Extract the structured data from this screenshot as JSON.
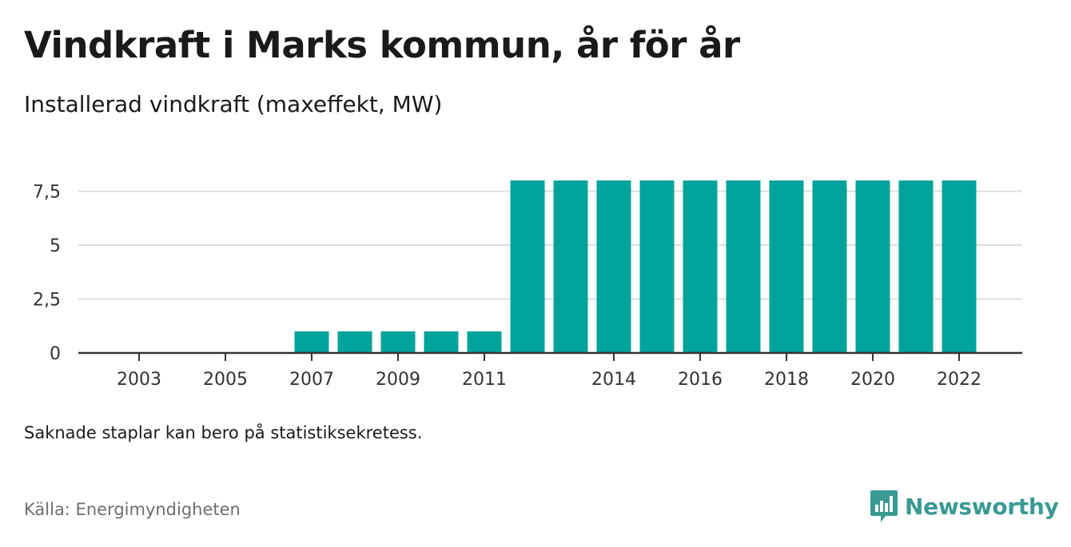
{
  "header": {
    "title": "Vindkraft i Marks kommun, år för år",
    "subtitle": "Installerad vindkraft (maxeffekt, MW)"
  },
  "footer": {
    "note": "Saknade staplar kan bero på statistiksekretess.",
    "source": "Källa: Energimyndigheten",
    "brand": "Newsworthy"
  },
  "colors": {
    "bar": "#00a39a",
    "grid": "#dddddd",
    "axis": "#333333",
    "brand": "#3a9a93"
  },
  "chart_data": {
    "type": "bar",
    "categories": [
      "2002",
      "2003",
      "2004",
      "2005",
      "2006",
      "2007",
      "2008",
      "2009",
      "2010",
      "2011",
      "2012",
      "2013",
      "2014",
      "2015",
      "2016",
      "2017",
      "2018",
      "2019",
      "2020",
      "2021",
      "2022"
    ],
    "values": [
      null,
      null,
      null,
      null,
      null,
      1,
      1,
      1,
      1,
      1,
      8,
      8,
      8,
      8,
      8,
      8,
      8,
      8,
      8,
      8,
      8
    ],
    "x_tick_labels": [
      "2003",
      "2005",
      "2007",
      "2009",
      "2011",
      "2014",
      "2016",
      "2018",
      "2020",
      "2022"
    ],
    "y_ticks": [
      0,
      2.5,
      5,
      7.5
    ],
    "y_tick_labels": [
      "0",
      "2,5",
      "5",
      "7,5"
    ],
    "ylim": [
      0,
      8
    ],
    "grid": true,
    "xlabel": "",
    "ylabel": ""
  }
}
